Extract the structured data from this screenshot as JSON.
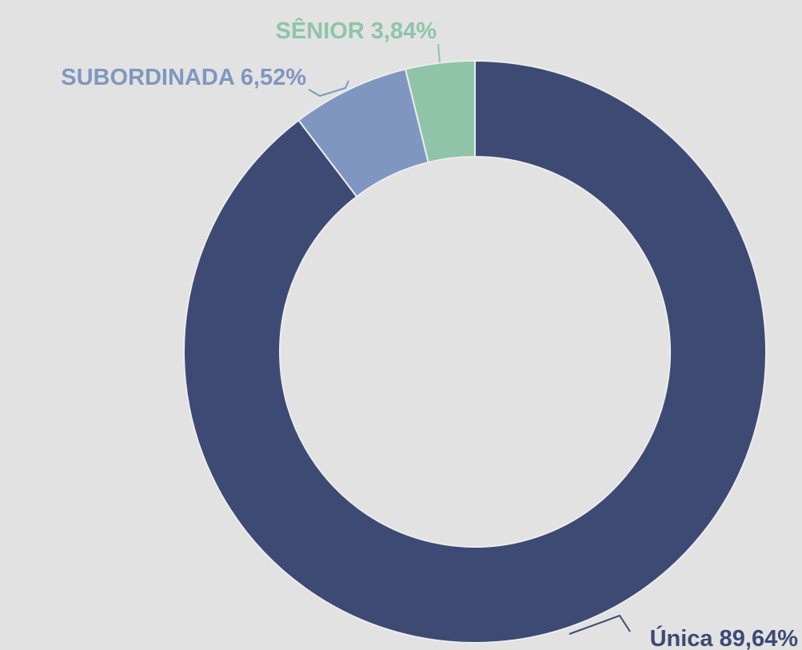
{
  "chart_data": {
    "type": "donut",
    "categories": [
      "Única",
      "SUBORDINADA",
      "SÊNIOR"
    ],
    "values": [
      89.64,
      6.52,
      3.84
    ],
    "value_labels": [
      "89,64%",
      "6,52%",
      "3,84%"
    ],
    "colors": [
      "#3d4a74",
      "#7f97c0",
      "#8fc4a8"
    ]
  }
}
